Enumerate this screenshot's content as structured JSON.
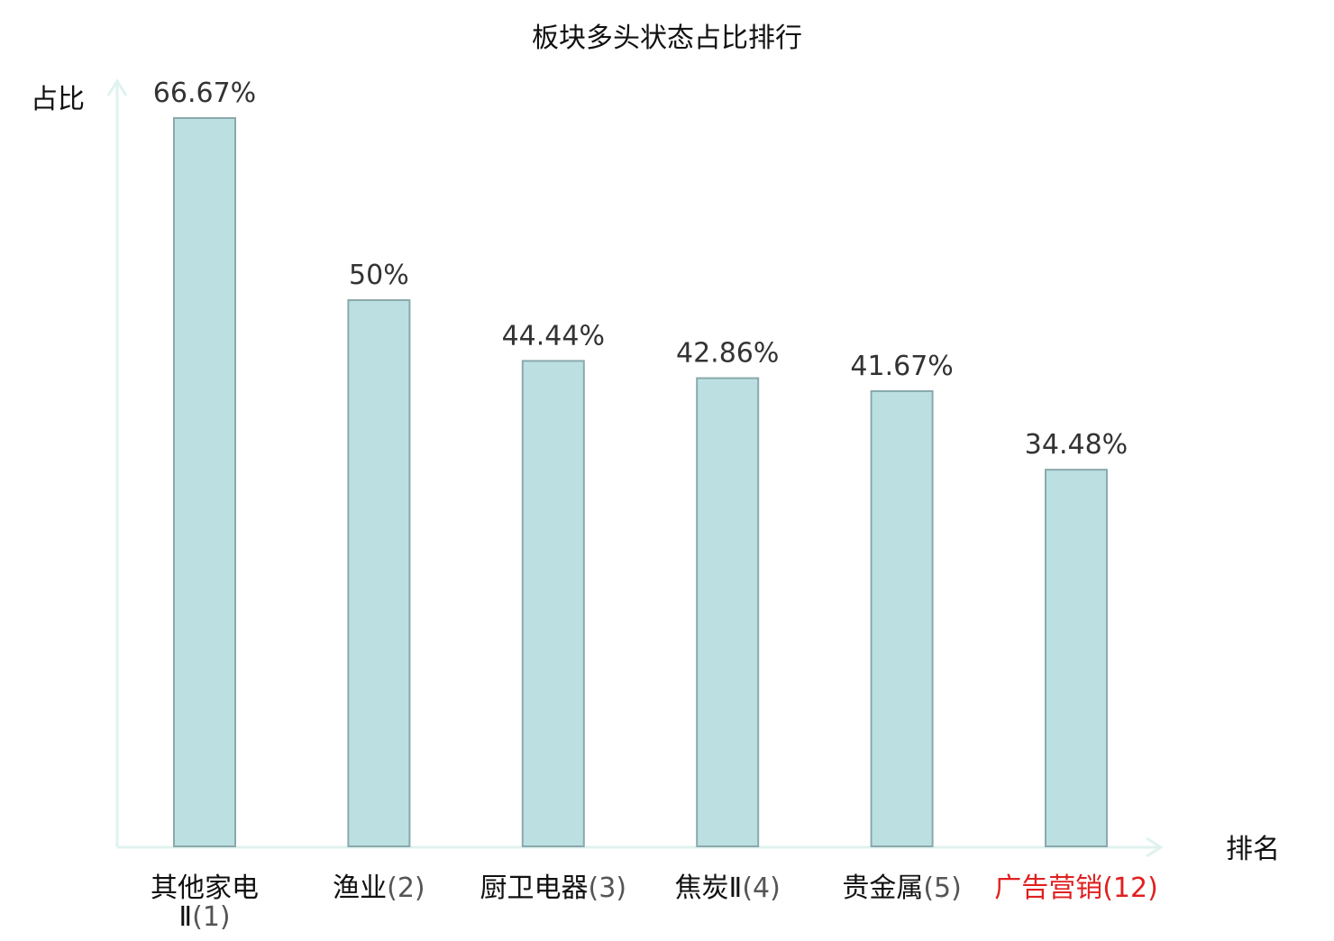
{
  "chart_data": {
    "type": "bar",
    "title": "板块多头状态占比排行",
    "ylabel": "占比",
    "xlabel": "排名",
    "categories": [
      {
        "name": "其他家电Ⅱ",
        "rank": "(1)",
        "highlight": false
      },
      {
        "name": "渔业",
        "rank": "(2)",
        "highlight": false
      },
      {
        "name": "厨卫电器",
        "rank": "(3)",
        "highlight": false
      },
      {
        "name": "焦炭Ⅱ",
        "rank": "(4)",
        "highlight": false
      },
      {
        "name": "贵金属",
        "rank": "(5)",
        "highlight": false
      },
      {
        "name": "广告营销",
        "rank": "(12)",
        "highlight": true
      }
    ],
    "values": [
      66.67,
      50,
      44.44,
      42.86,
      41.67,
      34.48
    ],
    "value_labels": [
      "66.67%",
      "50%",
      "44.44%",
      "42.86%",
      "41.67%",
      "34.48%"
    ],
    "ylim": [
      0,
      66.67
    ],
    "grid": false,
    "colors": {
      "bar_fill": "#bce0e2",
      "bar_stroke": "#8aa9ab",
      "axis": "#e0f2ef",
      "text": "#333333",
      "title": "#111111",
      "label": "#111111",
      "rank": "#555555",
      "highlight": "#e02020"
    }
  }
}
